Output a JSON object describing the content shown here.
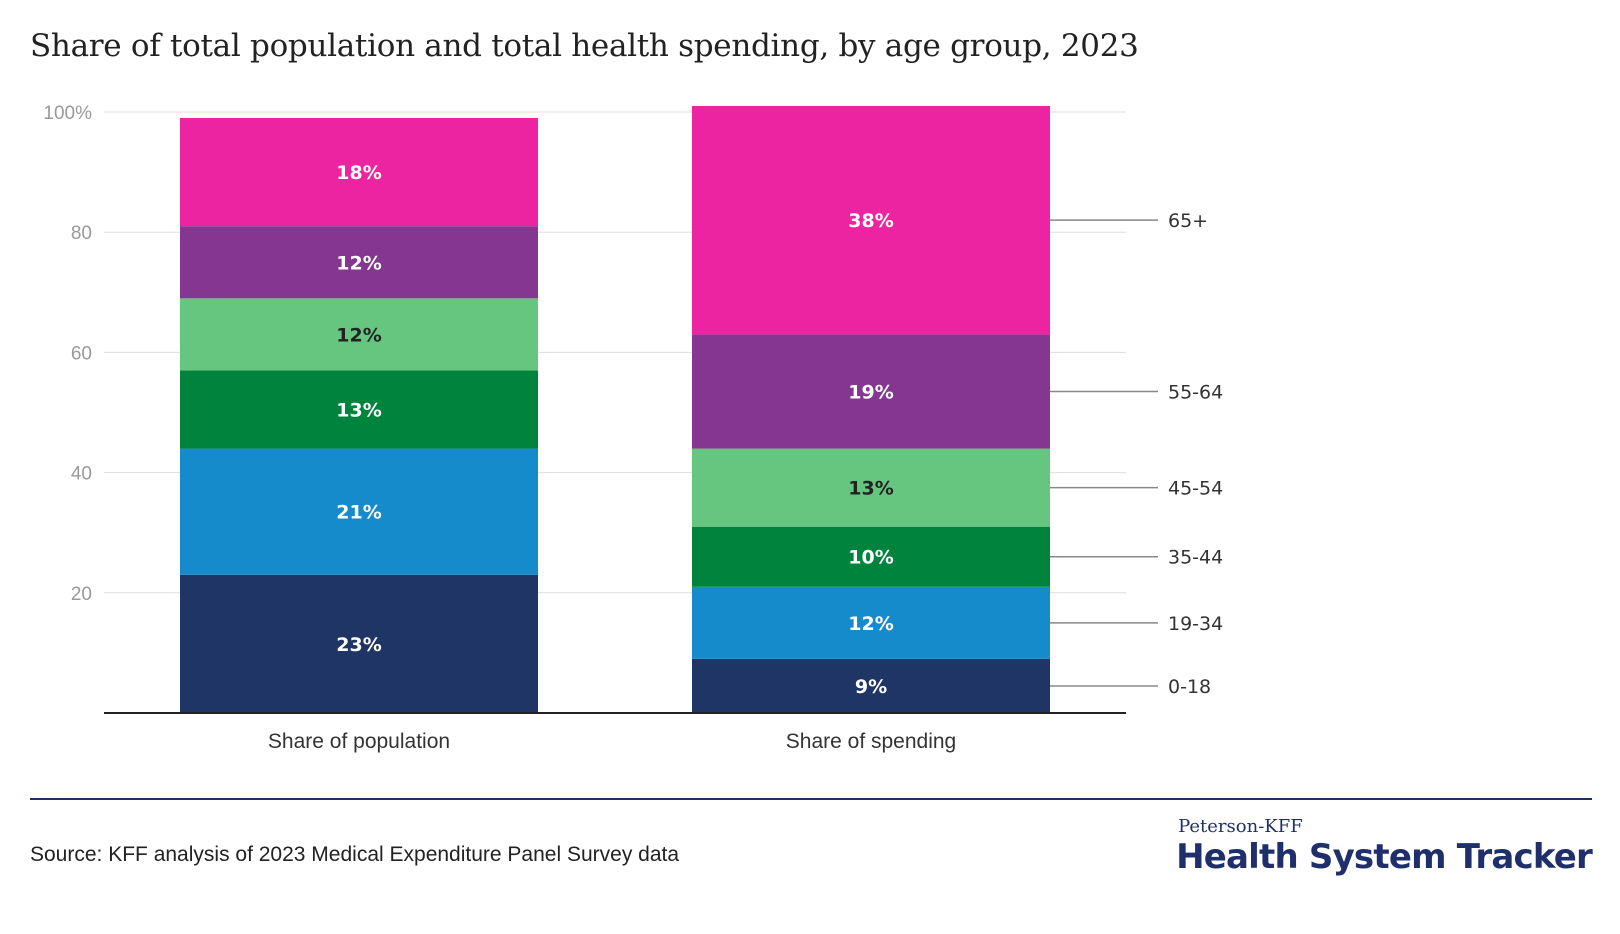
{
  "chart_data": {
    "type": "bar",
    "stacked": true,
    "title": "Share of total population and total health spending, by age group, 2023",
    "categories": [
      "Share of population",
      "Share of spending"
    ],
    "series": [
      {
        "name": "0-18",
        "color": "#1f3566",
        "values": [
          23,
          9
        ],
        "labels": [
          "23%",
          "9%"
        ],
        "label_color": "#ffffff"
      },
      {
        "name": "19-34",
        "color": "#168bcc",
        "values": [
          21,
          12
        ],
        "labels": [
          "21%",
          "12%"
        ],
        "label_color": "#ffffff"
      },
      {
        "name": "35-44",
        "color": "#00843d",
        "values": [
          13,
          10
        ],
        "labels": [
          "13%",
          "10%"
        ],
        "label_color": "#ffffff"
      },
      {
        "name": "45-54",
        "color": "#66c67f",
        "values": [
          12,
          13
        ],
        "labels": [
          "12%",
          "13%"
        ],
        "label_color": "#222222"
      },
      {
        "name": "55-64",
        "color": "#853691",
        "values": [
          12,
          19
        ],
        "labels": [
          "12%",
          "19%"
        ],
        "label_color": "#ffffff"
      },
      {
        "name": "65+",
        "color": "#ec24a1",
        "values": [
          18,
          38
        ],
        "labels": [
          "18%",
          "38%"
        ],
        "label_color": "#ffffff"
      }
    ],
    "ylim": [
      0,
      100
    ],
    "yticks": [
      20,
      40,
      60,
      80,
      100
    ],
    "ytick_labels": [
      "20",
      "40",
      "60",
      "80",
      "100%"
    ],
    "grid": true,
    "legend": "right, inline labels on second bar"
  },
  "footer": {
    "source": "Source: KFF analysis of 2023 Medical Expenditure Panel Survey data",
    "brand_small": "Peterson-KFF",
    "brand_big": "Health System Tracker"
  }
}
